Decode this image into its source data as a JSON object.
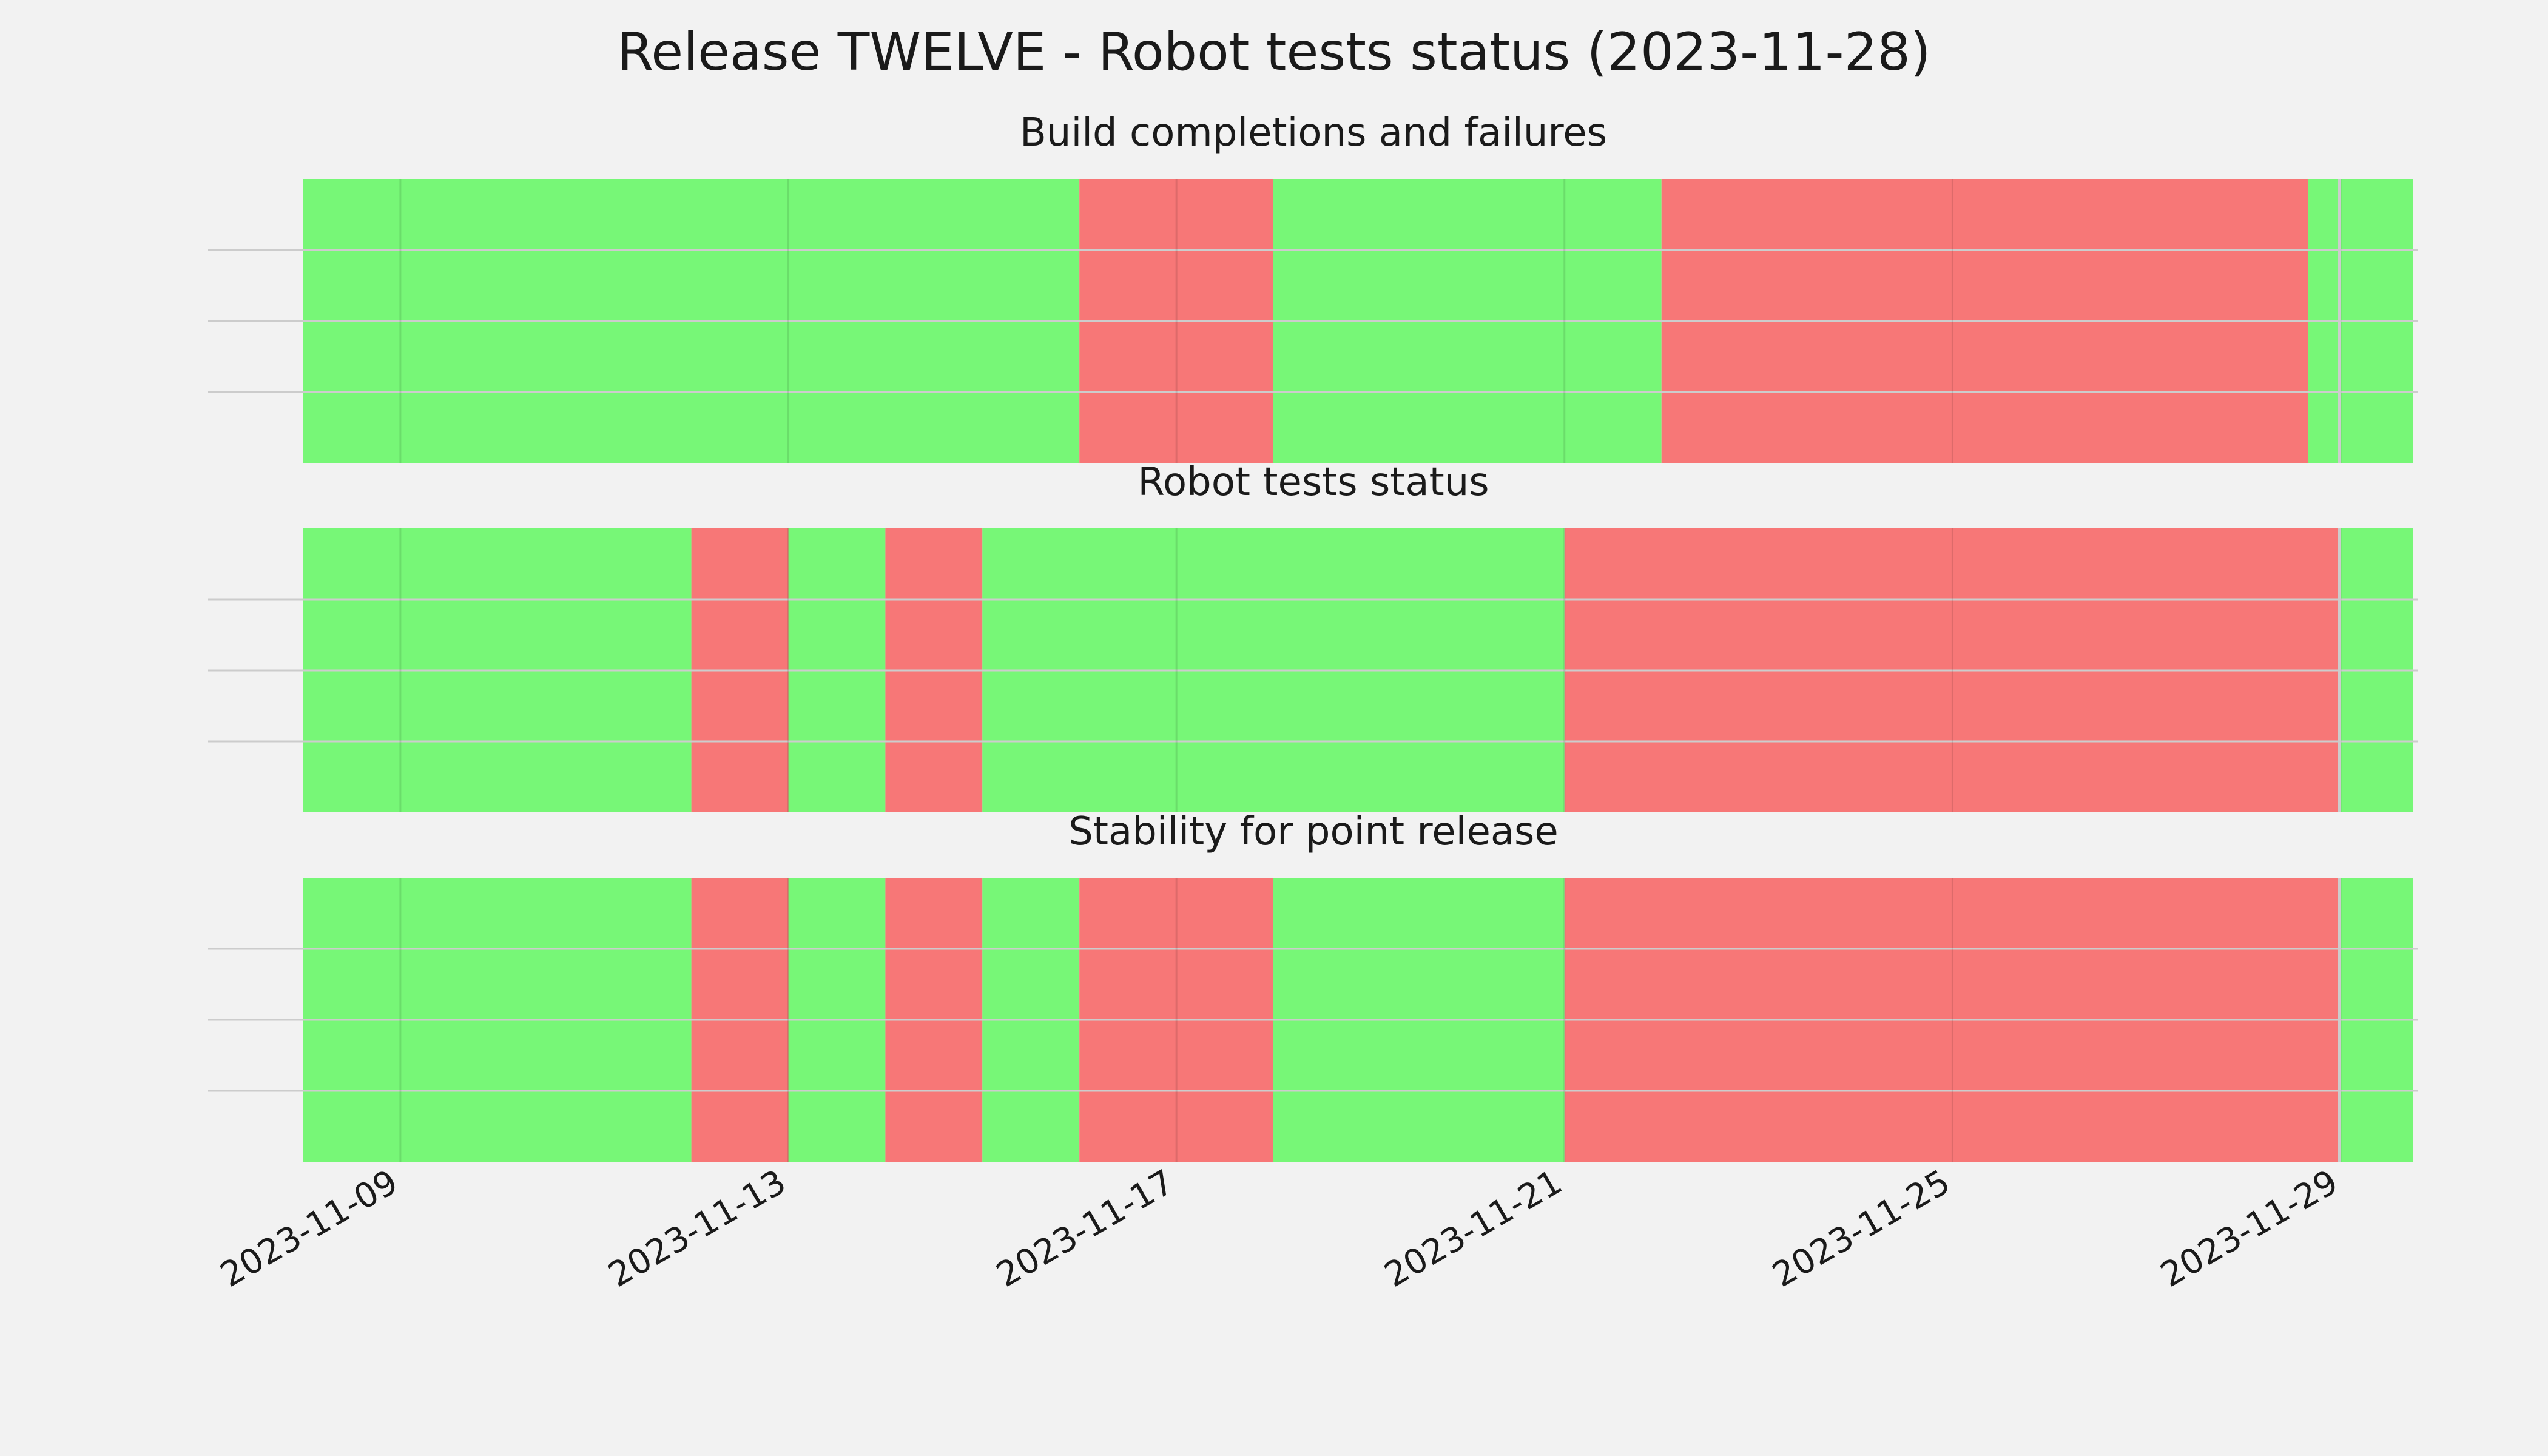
{
  "title": "Release TWELVE - Robot tests status (2023-11-28)",
  "colors": {
    "pass": "#77f777",
    "fail": "#f77777",
    "background": "#f2f2f2"
  },
  "chart_data": {
    "type": "timeline",
    "x_range": [
      "2023-11-08",
      "2023-11-29"
    ],
    "x_ticks": [
      "2023-11-09",
      "2023-11-13",
      "2023-11-17",
      "2023-11-21",
      "2023-11-25",
      "2023-11-29"
    ],
    "grid": true,
    "panels": [
      {
        "title": "Build completions and failures",
        "segments": [
          {
            "start": "2023-11-08",
            "end": "2023-11-16",
            "status": "pass"
          },
          {
            "start": "2023-11-16",
            "end": "2023-11-18",
            "status": "fail"
          },
          {
            "start": "2023-11-18",
            "end": "2023-11-22",
            "status": "pass"
          },
          {
            "start": "2023-11-22",
            "end": "2023-11-28T16:00",
            "status": "fail"
          },
          {
            "start": "2023-11-28T16:00",
            "end": "2023-11-29T18:00",
            "status": "pass"
          }
        ]
      },
      {
        "title": "Robot tests status",
        "segments": [
          {
            "start": "2023-11-08",
            "end": "2023-11-12",
            "status": "pass"
          },
          {
            "start": "2023-11-12",
            "end": "2023-11-13",
            "status": "fail"
          },
          {
            "start": "2023-11-13",
            "end": "2023-11-14",
            "status": "pass"
          },
          {
            "start": "2023-11-14",
            "end": "2023-11-15",
            "status": "fail"
          },
          {
            "start": "2023-11-15",
            "end": "2023-11-21",
            "status": "pass"
          },
          {
            "start": "2023-11-21",
            "end": "2023-11-29",
            "status": "fail"
          },
          {
            "start": "2023-11-29",
            "end": "2023-11-29T18:00",
            "status": "pass"
          }
        ]
      },
      {
        "title": "Stability for point release",
        "segments": [
          {
            "start": "2023-11-08",
            "end": "2023-11-12",
            "status": "pass"
          },
          {
            "start": "2023-11-12",
            "end": "2023-11-13",
            "status": "fail"
          },
          {
            "start": "2023-11-13",
            "end": "2023-11-14",
            "status": "pass"
          },
          {
            "start": "2023-11-14",
            "end": "2023-11-15",
            "status": "fail"
          },
          {
            "start": "2023-11-15",
            "end": "2023-11-16",
            "status": "pass"
          },
          {
            "start": "2023-11-16",
            "end": "2023-11-18",
            "status": "fail"
          },
          {
            "start": "2023-11-18",
            "end": "2023-11-21",
            "status": "pass"
          },
          {
            "start": "2023-11-21",
            "end": "2023-11-29",
            "status": "fail"
          },
          {
            "start": "2023-11-29",
            "end": "2023-11-29T18:00",
            "status": "pass"
          }
        ]
      }
    ]
  }
}
